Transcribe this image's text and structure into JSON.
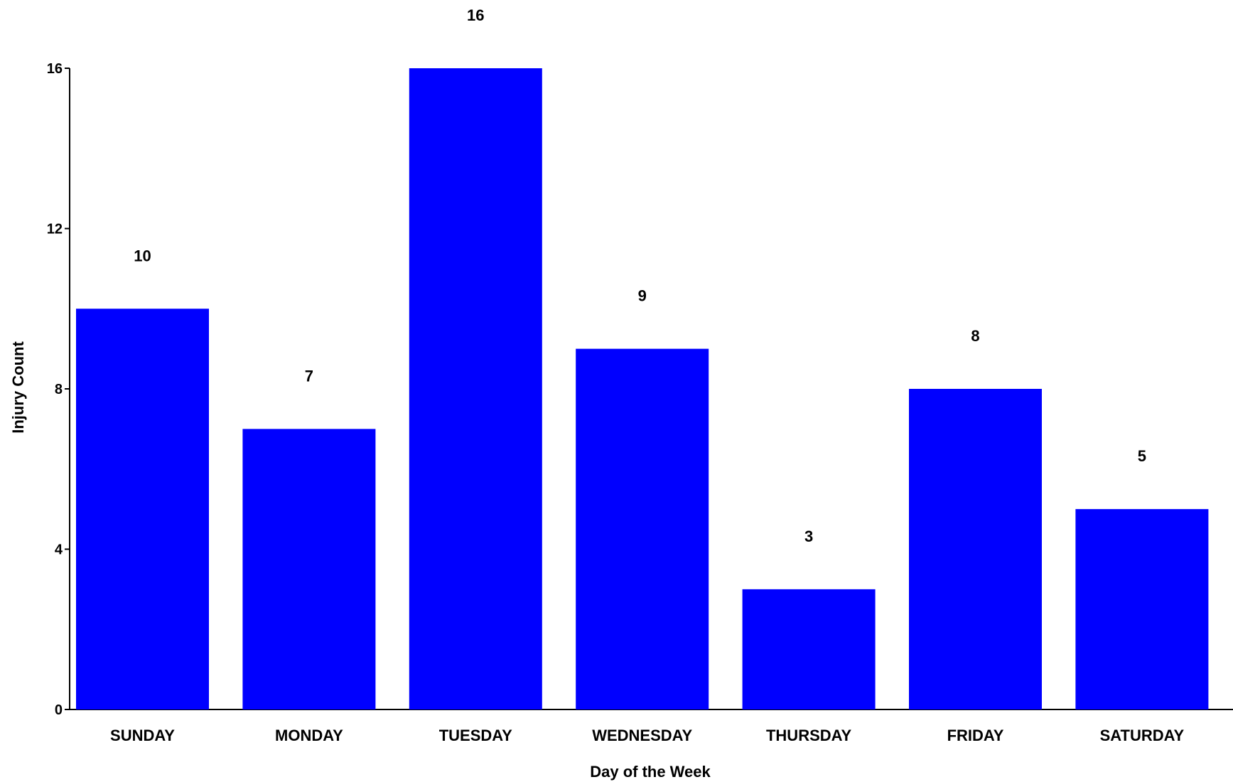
{
  "chart_data": {
    "type": "bar",
    "title": "",
    "xlabel": "Day of the Week",
    "ylabel": "Injury Count",
    "categories": [
      "SUNDAY",
      "MONDAY",
      "TUESDAY",
      "WEDNESDAY",
      "THURSDAY",
      "FRIDAY",
      "SATURDAY"
    ],
    "values": [
      10,
      7,
      16,
      9,
      3,
      8,
      5
    ],
    "value_labels": [
      "10",
      "7",
      "16",
      "9",
      "3",
      "8",
      "5"
    ],
    "yticks": [
      "0",
      "4",
      "8",
      "12",
      "16"
    ],
    "ylim": [
      0,
      16
    ],
    "grid": false,
    "legend": "none",
    "bar_color": "#0000FF"
  }
}
